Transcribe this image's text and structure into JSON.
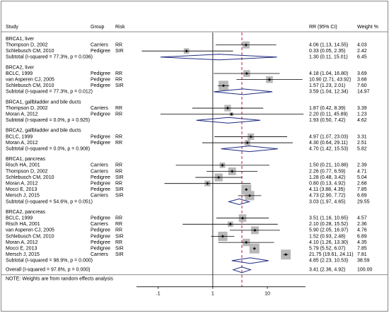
{
  "chart_data": {
    "type": "forest",
    "headers": {
      "study": "Study",
      "group": "Group",
      "risk": "Risk",
      "ci": "RR (95% CI)",
      "weight": "Weight %"
    },
    "xscale": "log",
    "xlim": [
      0.04,
      50
    ],
    "xticks": [
      {
        "value": 0.1,
        "label": ".1"
      },
      1,
      10
    ],
    "groups": [
      {
        "name": "BRCA1, liver",
        "studies": [
          {
            "study": "Thompson D, 2002",
            "group": "Carriers",
            "risk": "RR",
            "rr": 4.06,
            "lo": 1.13,
            "hi": 14.55,
            "ci_label": "4.06 (1.13, 14.55)",
            "weight": 4.03,
            "weight_label": "4.03"
          },
          {
            "study": "Schlebusch CM, 2010",
            "group": "Pedigree",
            "risk": "SIR",
            "rr": 0.33,
            "lo": 0.05,
            "hi": 2.35,
            "ci_label": "0.33 (0.05, 2.35)",
            "weight": 2.42,
            "weight_label": "2.42"
          }
        ],
        "subtotal": {
          "label": "Subtotal  (I-squared = 77.3%, p = 0.036)",
          "rr": 1.3,
          "lo": 0.11,
          "hi": 15.01,
          "ci_label": "1.30 (0.11, 15.01)",
          "weight": 6.45,
          "weight_label": "6.45"
        }
      },
      {
        "name": "BRCA2, liver",
        "studies": [
          {
            "study": "BCLC, 1999",
            "group": "Pedigree",
            "risk": "RR",
            "rr": 4.18,
            "lo": 1.04,
            "hi": 16.8,
            "ci_label": "4.18 (1.04, 16.80)",
            "weight": 3.69,
            "weight_label": "3.69"
          },
          {
            "study": "van Asperen CJ, 2005",
            "group": "Pedigree",
            "risk": "RR",
            "rr": 10.9,
            "lo": 2.71,
            "hi": 43.92,
            "ci_label": "10.90 (2.71, 43.92)",
            "weight": 3.68,
            "weight_label": "3.68"
          },
          {
            "study": "Schlebusch CM, 2010",
            "group": "Pedigree",
            "risk": "SIR",
            "rr": 1.57,
            "lo": 1.23,
            "hi": 2.01,
            "ci_label": "1.57 (1.23, 2.01)",
            "weight": 7.6,
            "weight_label": "7.60"
          }
        ],
        "subtotal": {
          "label": "Subtotal  (I-squared = 77.3%, p = 0.012)",
          "rr": 3.59,
          "lo": 1.04,
          "hi": 12.34,
          "ci_label": "3.59 (1.04, 12.34)",
          "weight": 14.97,
          "weight_label": "14.97"
        }
      },
      {
        "name": "BRCA1, gallbladder and bile ducts",
        "studies": [
          {
            "study": "Thompson D, 2002",
            "group": "Carriers",
            "risk": "RR",
            "rr": 1.87,
            "lo": 0.42,
            "hi": 8.39,
            "ci_label": "1.87 (0.42, 8.39)",
            "weight": 3.39,
            "weight_label": "3.39"
          },
          {
            "study": "Moran A, 2012",
            "group": "Pedigree",
            "risk": "RR",
            "rr": 2.2,
            "lo": 0.11,
            "hi": 45.89,
            "ci_label": "2.20 (0.11, 45.89)",
            "weight": 1.23,
            "weight_label": "1.23"
          }
        ],
        "subtotal": {
          "label": "Subtotal  (I-squared = 0.0%, p = 0.925)",
          "rr": 1.93,
          "lo": 0.5,
          "hi": 7.42,
          "ci_label": "1.93 (0.50, 7.42)",
          "weight": 4.62,
          "weight_label": "4.62"
        }
      },
      {
        "name": "BRCA2, gallbladder and bile ducts",
        "studies": [
          {
            "study": "BCLC, 1999",
            "group": "Pedigree",
            "risk": "RR",
            "rr": 4.97,
            "lo": 1.07,
            "hi": 23.03,
            "ci_label": "4.97 (1.07, 23.03)",
            "weight": 3.31,
            "weight_label": "3.31"
          },
          {
            "study": "Moran A, 2012",
            "group": "Pedigree",
            "risk": "RR",
            "rr": 4.3,
            "lo": 0.64,
            "hi": 29.11,
            "ci_label": "4.30 (0.64, 29.11)",
            "weight": 2.51,
            "weight_label": "2.51"
          }
        ],
        "subtotal": {
          "label": "Subtotal  (I-squared = 0.0%, p = 0.908)",
          "rr": 4.7,
          "lo": 1.42,
          "hi": 15.53,
          "ci_label": "4.70 (1.42, 15.53)",
          "weight": 5.82,
          "weight_label": "5.82"
        }
      },
      {
        "name": "BRCA1, pancreas",
        "studies": [
          {
            "study": "Risch HA, 2001",
            "group": "Carriers",
            "risk": "RR",
            "rr": 1.5,
            "lo": 0.21,
            "hi": 10.88,
            "ci_label": "1.50 (0.21, 10.88)",
            "weight": 2.39,
            "weight_label": "2.39"
          },
          {
            "study": "Thompson D, 2002",
            "group": "Carriers",
            "risk": "RR",
            "rr": 2.26,
            "lo": 0.77,
            "hi": 6.59,
            "ci_label": "2.26 (0.77, 6.59)",
            "weight": 4.71,
            "weight_label": "4.71"
          },
          {
            "study": "Schlebusch CM, 2010",
            "group": "Pedigree",
            "risk": "SIR",
            "rr": 1.28,
            "lo": 0.48,
            "hi": 3.42,
            "ci_label": "1.28 (0.48, 3.42)",
            "weight": 5.04,
            "weight_label": "5.04"
          },
          {
            "study": "Moran A, 2012",
            "group": "Pedigree",
            "risk": "RR",
            "rr": 0.8,
            "lo": 0.13,
            "hi": 4.92,
            "ci_label": "0.80 (0.13, 4.92)",
            "weight": 2.68,
            "weight_label": "2.68"
          },
          {
            "study": "Mocci E, 2013",
            "group": "Pedigree",
            "risk": "SIR",
            "rr": 4.11,
            "lo": 3.88,
            "hi": 4.35,
            "ci_label": "4.11 (3.88, 4.35)",
            "weight": 7.85,
            "weight_label": "7.85"
          },
          {
            "study": "Mersch J, 2015",
            "group": "Carriers",
            "risk": "SIR",
            "rr": 4.73,
            "lo": 2.9,
            "hi": 7.72,
            "ci_label": "4.73 (2.90, 7.72)",
            "weight": 6.89,
            "weight_label": "6.89"
          }
        ],
        "subtotal": {
          "label": "Subtotal  (I-squared = 54.6%, p = 0.051)",
          "rr": 3.03,
          "lo": 1.97,
          "hi": 4.65,
          "ci_label": "3.03 (1.97, 4.65)",
          "weight": 29.55,
          "weight_label": "29.55"
        }
      },
      {
        "name": "BRCA2, pancreas",
        "studies": [
          {
            "study": "BCLC, 1999",
            "group": "Pedigree",
            "risk": "RR",
            "rr": 3.51,
            "lo": 1.16,
            "hi": 10.65,
            "ci_label": "3.51 (1.16, 10.65)",
            "weight": 4.57,
            "weight_label": "4.57"
          },
          {
            "study": "Risch HA, 2001",
            "group": "Carriers",
            "risk": "RR",
            "rr": 2.1,
            "lo": 0.28,
            "hi": 15.52,
            "ci_label": "2.10 (0.28, 15.52)",
            "weight": 2.36,
            "weight_label": "2.36"
          },
          {
            "study": "van Asperen CJ, 2005",
            "group": "Pedigree",
            "risk": "RR",
            "rr": 5.9,
            "lo": 2.05,
            "hi": 16.97,
            "ci_label": "5.90 (2.05, 16.97)",
            "weight": 4.76,
            "weight_label": "4.76"
          },
          {
            "study": "Schlebusch CM, 2010",
            "group": "Pedigree",
            "risk": "SIR",
            "rr": 1.52,
            "lo": 0.93,
            "hi": 2.48,
            "ci_label": "1.52 (0.93, 2.48)",
            "weight": 6.89,
            "weight_label": "6.89"
          },
          {
            "study": "Moran A, 2012",
            "group": "Pedigree",
            "risk": "RR",
            "rr": 4.1,
            "lo": 1.26,
            "hi": 13.3,
            "ci_label": "4.10 (1.26, 13.30)",
            "weight": 4.35,
            "weight_label": "4.35"
          },
          {
            "study": "Mocci E, 2013",
            "group": "Pedigree",
            "risk": "SIR",
            "rr": 5.79,
            "lo": 5.52,
            "hi": 6.07,
            "ci_label": "5.79 (5.52, 6.07)",
            "weight": 7.85,
            "weight_label": "7.85"
          },
          {
            "study": "Mersch J, 2015",
            "group": "Carriers",
            "risk": "SIR",
            "rr": 21.75,
            "lo": 19.61,
            "hi": 24.11,
            "ci_label": "21.75 (19.61, 24.11)",
            "weight": 7.81,
            "weight_label": "7.81"
          }
        ],
        "subtotal": {
          "label": "Subtotal  (I-squared = 98.9%, p = 0.000)",
          "rr": 4.85,
          "lo": 2.23,
          "hi": 10.53,
          "ci_label": "4.85 (2.23, 10.53)",
          "weight": 38.59,
          "weight_label": "38.59"
        }
      }
    ],
    "overall": {
      "label": "Overall  (I-squared = 97.8%, p = 0.000)",
      "rr": 3.41,
      "lo": 2.36,
      "hi": 4.92,
      "ci_label": "3.41 (2.36, 4.92)",
      "weight": 100.0,
      "weight_label": "100.00"
    },
    "note": "NOTE: Weights are from random effects analysis",
    "colors": {
      "square": "#b8b8b8",
      "diamond": "#1f2a80",
      "overall_line": "#c0143c"
    }
  }
}
